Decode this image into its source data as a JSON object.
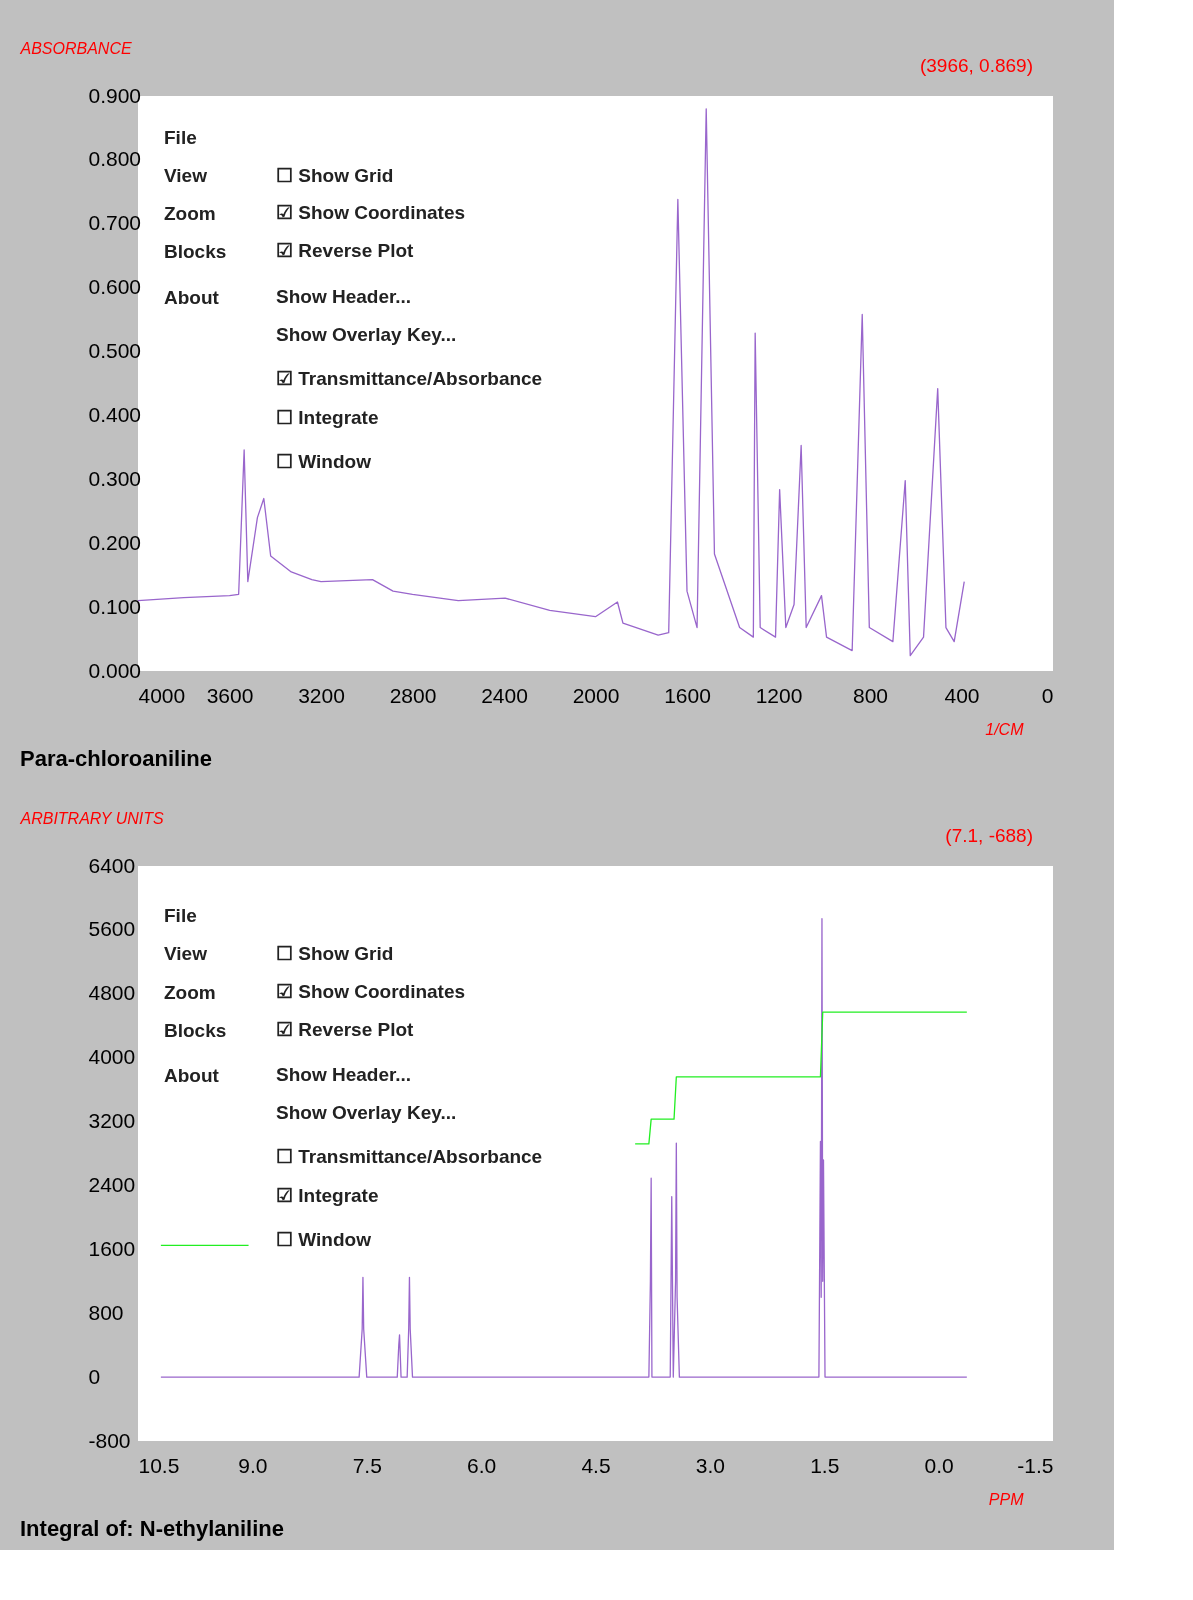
{
  "chart_data": [
    {
      "type": "line",
      "title": "Para-chloroaniline",
      "ylabel": "ABSORBANCE",
      "xlabel": "1/CM",
      "annotations": [
        "(3966, 0.869)",
        "File",
        "View",
        "Zoom",
        "Blocks",
        "About",
        "☐ Show Grid",
        "☑ Show Coordinates",
        "☑ Reverse Plot",
        "Show Header...",
        "Show Overlay Key...",
        "☑ Transmittance/Absorbance",
        "☐ Integrate",
        "☐ Window"
      ],
      "xlim": [
        4000,
        0
      ],
      "xticks": [
        4000,
        3600,
        3200,
        2800,
        2400,
        2000,
        1600,
        1200,
        800,
        400,
        0
      ],
      "ylim": [
        0,
        0.9
      ],
      "yticks": [
        {
          "value": 0,
          "label": "0.000"
        },
        {
          "value": 0.1,
          "label": "0.100"
        },
        {
          "value": 0.2,
          "label": "0.200"
        },
        {
          "value": 0.3,
          "label": "0.300"
        },
        {
          "value": 0.4,
          "label": "0.400"
        },
        {
          "value": 0.5,
          "label": "0.500"
        },
        {
          "value": 0.6,
          "label": "0.600"
        },
        {
          "value": 0.7,
          "label": "0.700"
        },
        {
          "value": 0.8,
          "label": "0.800"
        },
        {
          "value": 0.9,
          "label": "0.900"
        }
      ],
      "series": [
        {
          "color": "#9966cc",
          "x": [
            4000,
            3800,
            3600,
            3560,
            3536,
            3520,
            3478,
            3450,
            3420,
            3330,
            3240,
            3200,
            2975,
            2885,
            2800,
            2600,
            2395,
            2200,
            2000,
            1904,
            1880,
            1726,
            1680,
            1640,
            1600,
            1556,
            1516,
            1480,
            1370,
            1310,
            1302,
            1280,
            1213,
            1195,
            1168,
            1132,
            1101,
            1079,
            1012,
            990,
            878,
            834,
            803,
            700,
            646,
            624,
            566,
            504,
            468,
            432,
            388
          ],
          "values": [
            0.11,
            0.115,
            0.118,
            0.12,
            0.346,
            0.14,
            0.24,
            0.27,
            0.18,
            0.155,
            0.143,
            0.14,
            0.143,
            0.125,
            0.12,
            0.11,
            0.114,
            0.095,
            0.085,
            0.108,
            0.075,
            0.056,
            0.06,
            0.738,
            0.125,
            0.068,
            0.88,
            0.183,
            0.068,
            0.053,
            0.529,
            0.068,
            0.053,
            0.284,
            0.068,
            0.104,
            0.353,
            0.068,
            0.118,
            0.053,
            0.032,
            0.558,
            0.068,
            0.046,
            0.298,
            0.024,
            0.053,
            0.442,
            0.068,
            0.046,
            0.14
          ]
        }
      ]
    },
    {
      "type": "line",
      "title": "Integral of: N-ethylaniline",
      "ylabel": "ARBITRARY UNITS",
      "xlabel": "PPM",
      "annotations": [
        "(7.1, -688)",
        "File",
        "View",
        "Zoom",
        "Blocks",
        "About",
        "☐ Show Grid",
        "☑ Show Coordinates",
        "☑ Reverse Plot",
        "Show Header...",
        "Show Overlay Key...",
        "☐ Transmittance/Absorbance",
        "☑ Integrate",
        "☐ Window"
      ],
      "xlim": [
        10.5,
        -1.5
      ],
      "xticks": [
        10.5,
        {
          "value": 9,
          "label": "9.0"
        },
        7.5,
        {
          "value": 6,
          "label": "6.0"
        },
        4.5,
        {
          "value": 3,
          "label": "3.0"
        },
        1.5,
        {
          "value": 0,
          "label": "0.0"
        },
        -1.5
      ],
      "ylim": [
        -800,
        6400
      ],
      "yticks": [
        -800,
        0,
        800,
        1600,
        2400,
        3200,
        4000,
        4800,
        5600,
        6400
      ],
      "series": [
        {
          "color": "#9966cc",
          "x": [
            10.2,
            7.6,
            7.56,
            7.55,
            7.54,
            7.5,
            7.1,
            7.08,
            7.07,
            7.05,
            6.97,
            6.95,
            6.94,
            6.93,
            6.9,
            3.8,
            3.78,
            3.77,
            3.76,
            3.52,
            3.5,
            3.48,
            3.45,
            3.44,
            3.43,
            3.4,
            1.57,
            1.55,
            1.54,
            1.53,
            1.52,
            1.51,
            1.49,
            -0.37
          ],
          "values": [
            0,
            0,
            600,
            1250,
            600,
            0,
            0,
            400,
            530,
            0,
            0,
            600,
            1250,
            600,
            0,
            0,
            1200,
            2490,
            0,
            0,
            2260,
            0,
            1200,
            2930,
            1000,
            0,
            0,
            2950,
            1000,
            5740,
            1200,
            2720,
            0,
            0
          ]
        },
        {
          "color": "#22ee22",
          "x": [
            10.2,
            9.05,
            6.5,
            3.98,
            3.8,
            3.77,
            3.47,
            3.44,
            1.55,
            1.52,
            -0.37
          ],
          "values": [
            1650,
            1650,
            null,
            2920,
            2920,
            3230,
            3230,
            3760,
            3760,
            4570,
            4570
          ]
        }
      ]
    }
  ]
}
